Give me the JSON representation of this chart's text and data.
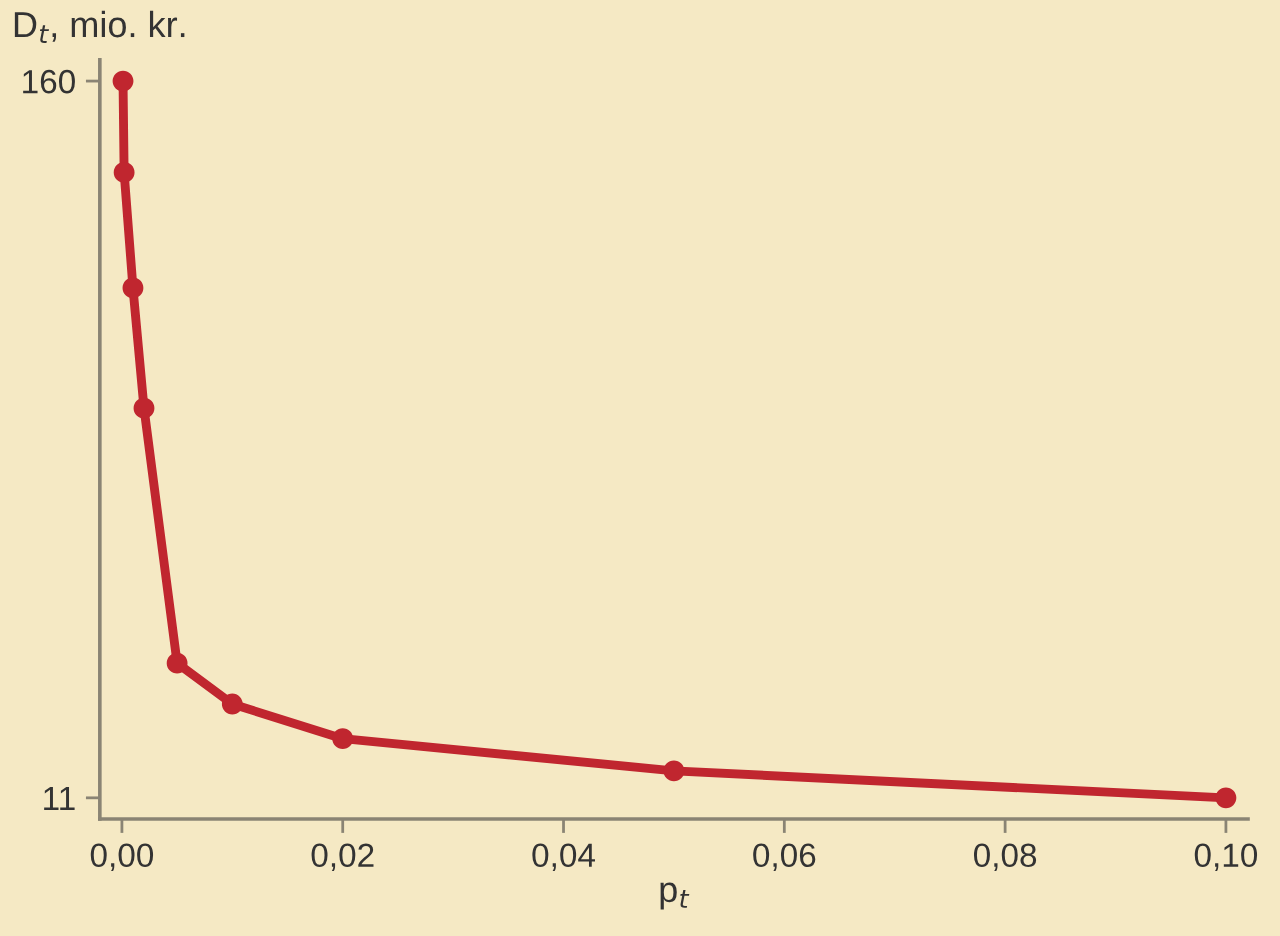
{
  "chart_data": {
    "type": "line",
    "ylabel": "D$_{t}$, mio. kr.",
    "xlabel": "p$_{t}$",
    "x": [
      0.0001,
      0.0002,
      0.001,
      0.002,
      0.005,
      0.01,
      0.02,
      0.05,
      0.1
    ],
    "series": [
      {
        "color": "#c0262f",
        "values": [
          160,
          141,
          117,
          92,
          39,
          30.5,
          23.3,
          16.6,
          11
        ]
      }
    ],
    "xlim": [
      -0.002,
      0.102
    ],
    "xticks": [
      {
        "value": 0,
        "label": "0,00"
      },
      {
        "value": 0.02,
        "label": "0,02"
      },
      {
        "value": 0.04,
        "label": "0,04"
      },
      {
        "value": 0.06,
        "label": "0,06"
      },
      {
        "value": 0.08,
        "label": "0,08"
      },
      {
        "value": 0.1,
        "label": "0,10"
      }
    ],
    "ylim": [
      6.6,
      164.4
    ],
    "yticks": [
      11,
      160
    ],
    "grid": false,
    "marker": "circle",
    "line_style": "solid"
  }
}
